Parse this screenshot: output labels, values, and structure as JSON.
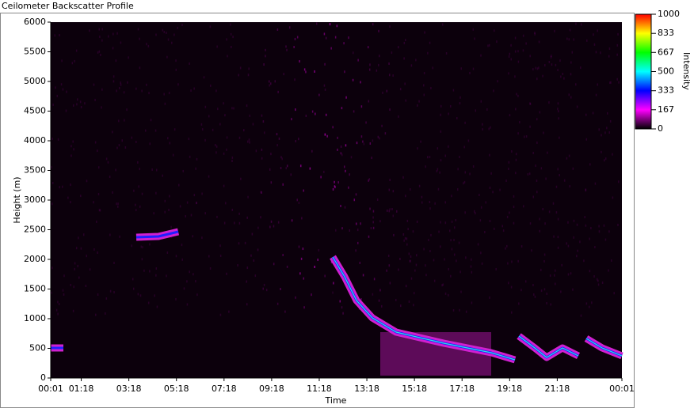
{
  "chart_data": {
    "type": "heatmap",
    "title": "Ceilometer Backscatter Profile",
    "x_label": "Time",
    "y_label": "Height (m)",
    "colorbar_label": "Intensity",
    "xlim": [
      1,
      1441
    ],
    "xticks": [
      {
        "value": 1,
        "label": "00:01"
      },
      {
        "value": 78,
        "label": "01:18"
      },
      {
        "value": 198,
        "label": "03:18"
      },
      {
        "value": 318,
        "label": "05:18"
      },
      {
        "value": 438,
        "label": "07:18"
      },
      {
        "value": 558,
        "label": "09:18"
      },
      {
        "value": 678,
        "label": "11:18"
      },
      {
        "value": 798,
        "label": "13:18"
      },
      {
        "value": 918,
        "label": "15:18"
      },
      {
        "value": 1038,
        "label": "17:18"
      },
      {
        "value": 1158,
        "label": "19:18"
      },
      {
        "value": 1278,
        "label": "21:18"
      },
      {
        "value": 1441,
        "label": "00:01"
      }
    ],
    "ylim": [
      0,
      6000
    ],
    "yticks": [
      0,
      500,
      1000,
      1500,
      2000,
      2500,
      3000,
      3500,
      4000,
      4500,
      5000,
      5500,
      6000
    ],
    "clim": [
      0,
      1000
    ],
    "cticks": [
      0,
      167,
      333,
      500,
      667,
      833,
      1000
    ],
    "colormap": [
      "#000000",
      "#ff00ff",
      "#0000ff",
      "#00ffff",
      "#00ff00",
      "#ffff00",
      "#ff0000"
    ]
  }
}
